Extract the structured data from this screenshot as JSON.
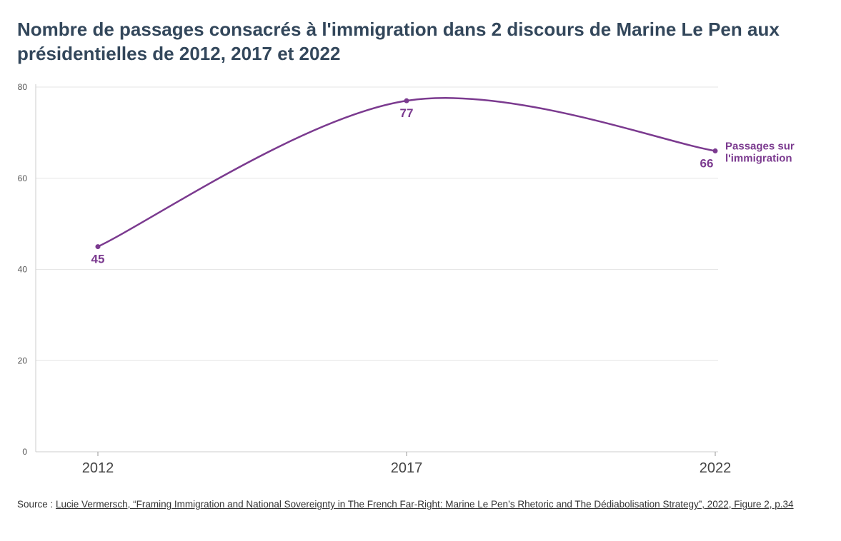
{
  "header": {
    "title": "Nombre de passages consacrés à l'immigration dans 2 discours de Marine Le Pen aux présidentielles de 2012, 2017 et 2022"
  },
  "footer": {
    "source_prefix": "Source : ",
    "source_link_text": "Lucie Vermersch, “Framing Immigration and National Sovereignty in The French Far-Right: Marine Le Pen’s Rhetoric and The Dédiabolisation Strategy”, 2022, Figure 2, p.34"
  },
  "colors": {
    "series": "#7b3a8f",
    "grid": "#e6e6e6",
    "axis": "#cccccc"
  },
  "chart_data": {
    "type": "line",
    "title": "Nombre de passages consacrés à l'immigration dans 2 discours de Marine Le Pen aux présidentielles de 2012, 2017 et 2022",
    "xlabel": "",
    "ylabel": "",
    "categories": [
      "2012",
      "2017",
      "2022"
    ],
    "series": [
      {
        "name": "Passages sur l'immigration",
        "name_lines": [
          "Passages sur",
          "l'immigration"
        ],
        "values": [
          45,
          77,
          66
        ],
        "labels": [
          "45",
          "77",
          "66"
        ]
      }
    ],
    "ylim": [
      0,
      80
    ],
    "yticks": [
      0,
      20,
      40,
      60,
      80
    ],
    "grid": true,
    "curve": "smooth",
    "legend": "direct label at line end"
  }
}
